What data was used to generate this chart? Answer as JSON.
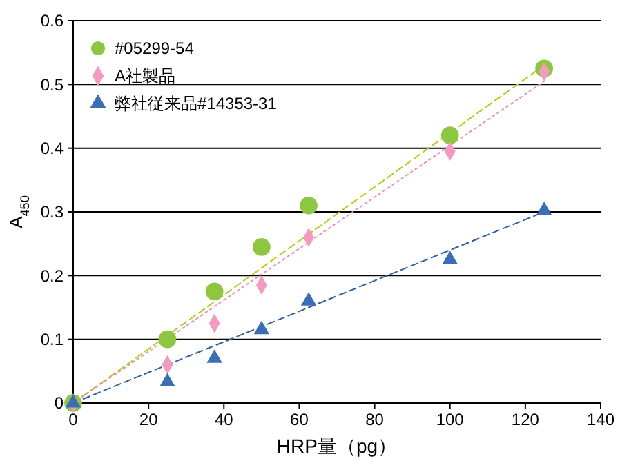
{
  "chart_data": {
    "type": "scatter",
    "xlabel": "HRP量（pg）",
    "ylabel": "A$_{450}$",
    "xlim": [
      0,
      140
    ],
    "xticks": [
      0,
      20,
      40,
      60,
      80,
      100,
      120,
      140
    ],
    "ylim": [
      0,
      0.6
    ],
    "yticks": [
      0,
      0.1,
      0.2,
      0.3,
      0.4,
      0.5,
      0.6
    ],
    "grid": "y",
    "legend": "top left",
    "series": [
      {
        "name": "#05299-54",
        "color": "#8dc63f",
        "marker": "circle",
        "x": [
          0,
          25,
          37.5,
          50,
          62.5,
          100,
          125
        ],
        "values": [
          0,
          0.1,
          0.175,
          0.245,
          0.31,
          0.42,
          0.525
        ]
      },
      {
        "name": "A社製品",
        "color": "#f49ac1",
        "marker": "diamond",
        "x": [
          0,
          25,
          37.5,
          50,
          62.5,
          100,
          125
        ],
        "values": [
          0,
          0.06,
          0.125,
          0.185,
          0.26,
          0.395,
          0.52
        ]
      },
      {
        "name": "弊社従来品#14353-31",
        "color": "#3a6fb7",
        "marker": "triangle",
        "x": [
          0,
          25,
          37.5,
          50,
          62.5,
          100,
          125
        ],
        "values": [
          0,
          0.033,
          0.07,
          0.115,
          0.16,
          0.225,
          0.302
        ]
      },
      {
        "type": "line",
        "color": "#b5cc18",
        "marker": "none",
        "line_style": "dashed",
        "x": [
          0,
          125
        ],
        "values": [
          0,
          0.53
        ]
      },
      {
        "type": "line",
        "color": "#f08fb0",
        "marker": "none",
        "line_style": "dotted",
        "x": [
          0,
          125
        ],
        "values": [
          0,
          0.505
        ]
      },
      {
        "type": "line",
        "color": "#2e5fa8",
        "marker": "none",
        "line_style": "dashed",
        "x": [
          0,
          125
        ],
        "values": [
          0,
          0.3
        ]
      }
    ]
  }
}
